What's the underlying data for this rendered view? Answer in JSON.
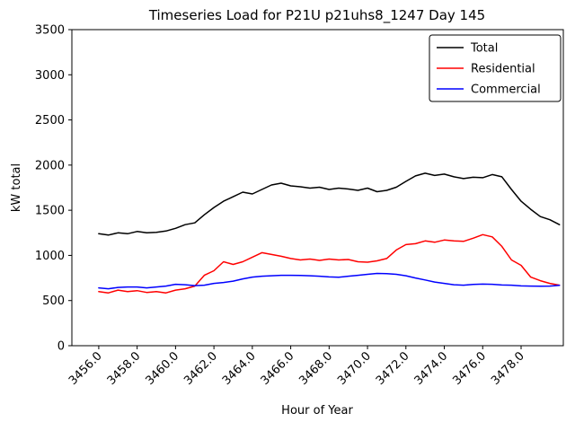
{
  "figure": {
    "title": "Timeseries Load for P21U p21uhs8_1247  Day 145",
    "xlabel": "Hour of Year",
    "ylabel": "kW total"
  },
  "chart_data": {
    "type": "line",
    "title": "Timeseries Load for P21U p21uhs8_1247  Day 145",
    "xlabel": "Hour of Year",
    "ylabel": "kW total",
    "xlim": [
      3454.6,
      3480.2
    ],
    "ylim": [
      0,
      3500
    ],
    "grid": false,
    "legend_position": "upper right",
    "xticks": [
      3456,
      3458,
      3460,
      3462,
      3464,
      3466,
      3468,
      3470,
      3472,
      3474,
      3476,
      3478
    ],
    "xtick_labels": [
      "3456.0",
      "3458.0",
      "3460.0",
      "3462.0",
      "3464.0",
      "3466.0",
      "3468.0",
      "3470.0",
      "3472.0",
      "3474.0",
      "3476.0",
      "3478.0"
    ],
    "yticks": [
      0,
      500,
      1000,
      1500,
      2000,
      2500,
      3000,
      3500
    ],
    "ytick_labels": [
      "0",
      "500",
      "1000",
      "1500",
      "2000",
      "2500",
      "3000",
      "3500"
    ],
    "x": [
      3456,
      3456.5,
      3457,
      3457.5,
      3458,
      3458.5,
      3459,
      3459.5,
      3460,
      3460.5,
      3461,
      3461.5,
      3462,
      3462.5,
      3463,
      3463.5,
      3464,
      3464.5,
      3465,
      3465.5,
      3466,
      3466.5,
      3467,
      3467.5,
      3468,
      3468.5,
      3469,
      3469.5,
      3470,
      3470.5,
      3471,
      3471.5,
      3472,
      3472.5,
      3473,
      3473.5,
      3474,
      3474.5,
      3475,
      3475.5,
      3476,
      3476.5,
      3477,
      3477.5,
      3478,
      3478.5,
      3479,
      3479.5,
      3480
    ],
    "series": [
      {
        "name": "Total",
        "color": "#000000",
        "values": [
          1240,
          1225,
          1250,
          1240,
          1265,
          1250,
          1255,
          1270,
          1300,
          1340,
          1360,
          1450,
          1530,
          1600,
          1650,
          1700,
          1680,
          1730,
          1780,
          1800,
          1770,
          1760,
          1745,
          1755,
          1730,
          1745,
          1735,
          1720,
          1745,
          1705,
          1720,
          1755,
          1820,
          1880,
          1910,
          1885,
          1900,
          1870,
          1850,
          1865,
          1860,
          1895,
          1870,
          1730,
          1600,
          1510,
          1430,
          1395,
          1340
        ]
      },
      {
        "name": "Residential",
        "color": "#ff0000",
        "values": [
          600,
          585,
          615,
          600,
          610,
          590,
          600,
          585,
          615,
          630,
          660,
          780,
          830,
          930,
          900,
          930,
          980,
          1030,
          1010,
          990,
          965,
          950,
          960,
          945,
          960,
          950,
          955,
          930,
          925,
          940,
          965,
          1060,
          1120,
          1130,
          1160,
          1145,
          1170,
          1160,
          1155,
          1190,
          1230,
          1205,
          1100,
          950,
          890,
          760,
          720,
          690,
          670
        ]
      },
      {
        "name": "Commercial",
        "color": "#0000ff",
        "values": [
          640,
          630,
          645,
          650,
          650,
          640,
          650,
          660,
          680,
          675,
          665,
          670,
          690,
          700,
          715,
          740,
          760,
          770,
          775,
          780,
          780,
          778,
          775,
          770,
          762,
          758,
          770,
          780,
          790,
          800,
          798,
          790,
          775,
          750,
          728,
          705,
          690,
          675,
          670,
          678,
          682,
          680,
          672,
          670,
          662,
          660,
          658,
          660,
          668
        ]
      }
    ]
  }
}
